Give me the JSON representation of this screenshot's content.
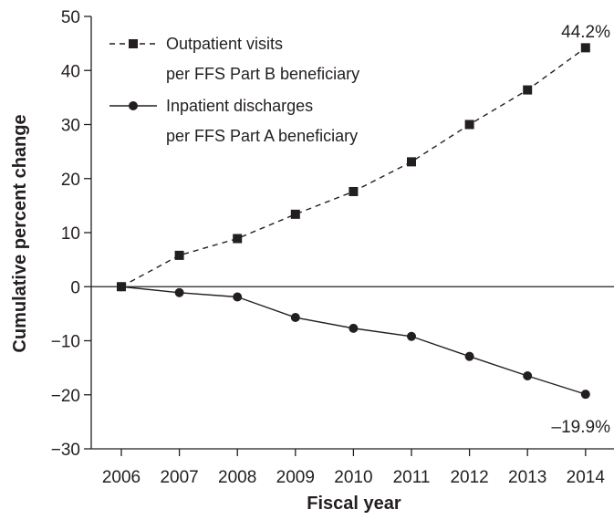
{
  "chart_data": {
    "type": "line",
    "title": "",
    "xlabel": "Fiscal year",
    "ylabel": "Cumulative percent change",
    "x": [
      "2006",
      "2007",
      "2008",
      "2009",
      "2010",
      "2011",
      "2012",
      "2013",
      "2014"
    ],
    "ylim": [
      -30,
      50
    ],
    "yticks": [
      -30,
      -20,
      -10,
      0,
      10,
      20,
      30,
      40,
      50
    ],
    "ytick_labels": [
      "−30",
      "−20",
      "−10",
      "0",
      "10",
      "20",
      "30",
      "40",
      "50"
    ],
    "grid": false,
    "legend_position": "top-left",
    "series": [
      {
        "name_line1": "Outpatient visits",
        "name_line2": "per FFS Part B beneficiary",
        "marker": "square",
        "line_style": "dashed",
        "values": [
          0,
          5.8,
          8.9,
          13.4,
          17.6,
          23.1,
          30.0,
          36.4,
          44.2
        ],
        "end_label": "44.2%"
      },
      {
        "name_line1": "Inpatient discharges",
        "name_line2": "per FFS Part A beneficiary",
        "marker": "circle",
        "line_style": "solid",
        "values": [
          0,
          -1.1,
          -1.9,
          -5.7,
          -7.7,
          -9.2,
          -12.9,
          -16.5,
          -19.9
        ],
        "end_label": "–19.9%"
      }
    ],
    "colors": {
      "ink": "#231f20"
    }
  }
}
